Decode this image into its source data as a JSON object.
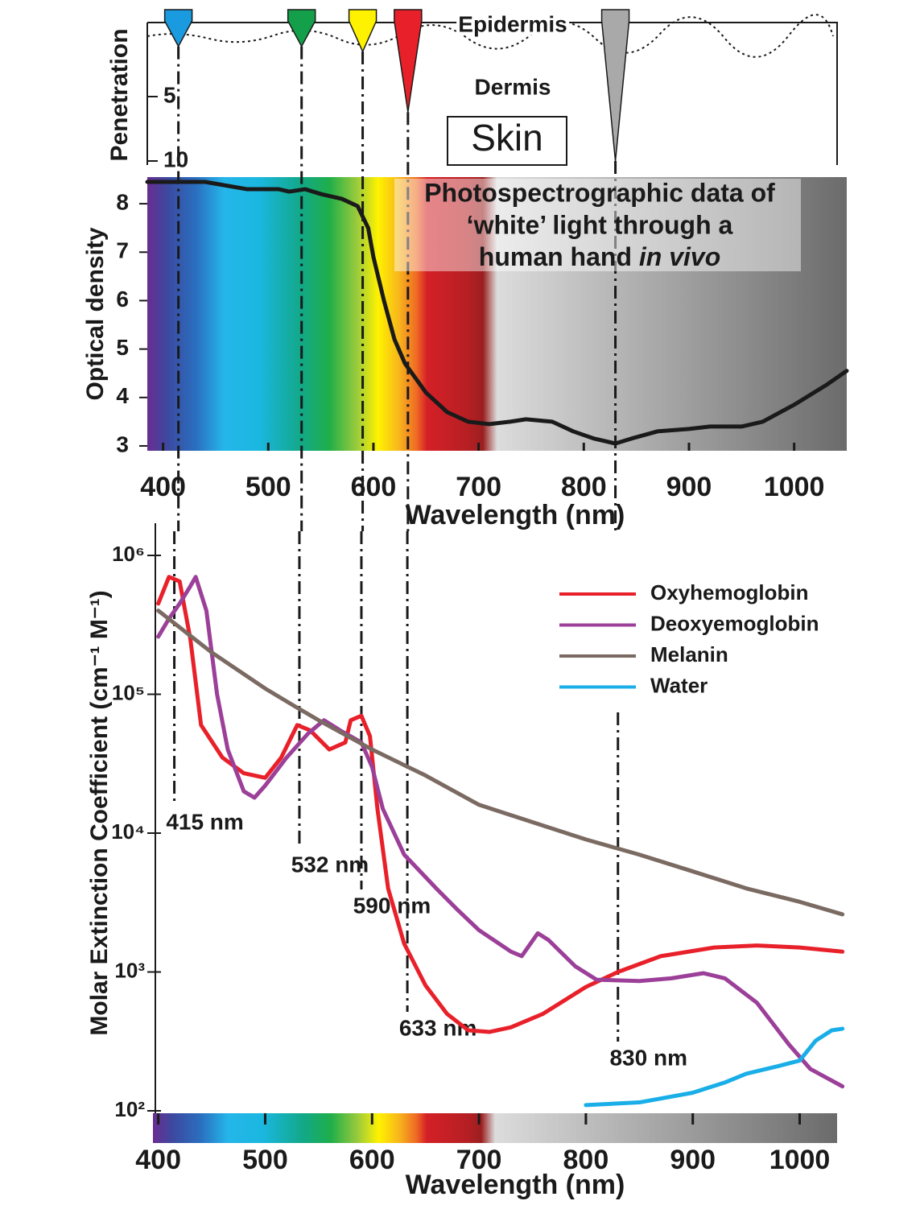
{
  "chart_data": [
    {
      "type": "penetration",
      "ylabel": "Penetration",
      "ylim": [
        0,
        10
      ],
      "yticks": [
        5,
        10
      ],
      "labels": [
        "Epidermis",
        "Dermis",
        "Skin"
      ],
      "x": [
        415,
        532,
        590,
        633,
        830
      ],
      "values": [
        1.1,
        1.1,
        1.5,
        6.2,
        10
      ],
      "colors": [
        "#1a9be0",
        "#14a04a",
        "#fff200",
        "#e8202a",
        "#a9a9a9"
      ]
    },
    {
      "type": "line",
      "title": [
        "Photospectrographic data of",
        "‘white’ light through a",
        "human hand",
        "in vivo"
      ],
      "xlabel": "Wavelength (nm)",
      "ylabel": "Optical density",
      "color": "#1a1a1a",
      "xlim": [
        385,
        1050
      ],
      "xticks": [
        400,
        500,
        600,
        700,
        800,
        900,
        1000
      ],
      "ylim": [
        2.9,
        8.55
      ],
      "yticks": [
        3,
        4,
        5,
        6,
        7,
        8
      ],
      "x": [
        385,
        400,
        440,
        480,
        510,
        520,
        535,
        550,
        570,
        585,
        595,
        600,
        610,
        620,
        630,
        650,
        670,
        690,
        710,
        730,
        745,
        770,
        790,
        810,
        830,
        845,
        870,
        900,
        920,
        950,
        970,
        1000,
        1030,
        1050
      ],
      "values": [
        8.45,
        8.45,
        8.45,
        8.3,
        8.3,
        8.25,
        8.3,
        8.2,
        8.1,
        7.95,
        7.5,
        6.9,
        6.0,
        5.2,
        4.7,
        4.1,
        3.7,
        3.5,
        3.45,
        3.5,
        3.55,
        3.5,
        3.3,
        3.15,
        3.05,
        3.15,
        3.3,
        3.35,
        3.4,
        3.4,
        3.5,
        3.85,
        4.25,
        4.55
      ]
    },
    {
      "type": "line",
      "log_y": true,
      "xlabel": "Wavelength (nm)",
      "ylabel": "Molar Extinction Coefficient (cm⁻¹ M⁻¹)",
      "xlim": [
        395,
        1035
      ],
      "xticks": [
        400,
        500,
        600,
        700,
        800,
        900,
        1000
      ],
      "ylim": [
        100,
        1000000
      ],
      "yticks": [
        {
          "value": 100,
          "label": "10²"
        },
        {
          "value": 1000,
          "label": "10³"
        },
        {
          "value": 10000,
          "label": "10⁴"
        },
        {
          "value": 100000,
          "label": "10⁵"
        },
        {
          "value": 1000000,
          "label": "10⁶"
        }
      ],
      "markers": [
        415,
        532,
        590,
        633,
        830
      ],
      "marker_labels": [
        "415 nm",
        "532 nm",
        "590 nm",
        "633 nm",
        "830 nm"
      ],
      "series": [
        {
          "name": "Oxyhemoglobin",
          "color": "#e8202a",
          "x": [
            400,
            410,
            420,
            430,
            440,
            460,
            480,
            500,
            515,
            530,
            542,
            560,
            575,
            580,
            590,
            598,
            605,
            615,
            630,
            650,
            670,
            690,
            710,
            730,
            760,
            800,
            830,
            870,
            920,
            960,
            1000,
            1040
          ],
          "values": [
            450000,
            700000,
            650000,
            250000,
            60000,
            35000,
            27000,
            25000,
            35000,
            60000,
            55000,
            40000,
            45000,
            65000,
            70000,
            50000,
            15000,
            4000,
            1600,
            800,
            500,
            380,
            370,
            400,
            500,
            780,
            1000,
            1300,
            1500,
            1550,
            1500,
            1400
          ]
        },
        {
          "name": "Deoxyemoglobin",
          "color": "#9b3f98",
          "x": [
            400,
            410,
            420,
            430,
            435,
            445,
            455,
            465,
            480,
            490,
            500,
            520,
            540,
            555,
            570,
            590,
            600,
            610,
            630,
            660,
            680,
            700,
            730,
            740,
            755,
            765,
            790,
            810,
            850,
            880,
            910,
            930,
            960,
            990,
            1010,
            1040
          ],
          "values": [
            260000,
            350000,
            450000,
            600000,
            700000,
            400000,
            100000,
            40000,
            20000,
            18000,
            22000,
            35000,
            52000,
            65000,
            55000,
            45000,
            30000,
            15000,
            7000,
            4000,
            2800,
            2000,
            1400,
            1300,
            1900,
            1700,
            1100,
            880,
            860,
            900,
            980,
            900,
            600,
            300,
            200,
            150
          ]
        },
        {
          "name": "Melanin",
          "color": "#7a6a62",
          "x": [
            400,
            450,
            500,
            530,
            550,
            600,
            650,
            700,
            750,
            800,
            850,
            900,
            950,
            1000,
            1040
          ],
          "values": [
            400000,
            200000,
            110000,
            80000,
            65000,
            40000,
            26000,
            16000,
            12000,
            9000,
            7000,
            5300,
            4000,
            3200,
            2600
          ]
        },
        {
          "name": "Water",
          "color": "#19aee8",
          "x": [
            800,
            850,
            900,
            930,
            950,
            980,
            1000,
            1015,
            1030,
            1040
          ],
          "values": [
            110,
            115,
            135,
            160,
            185,
            210,
            230,
            320,
            380,
            390
          ]
        }
      ]
    }
  ]
}
